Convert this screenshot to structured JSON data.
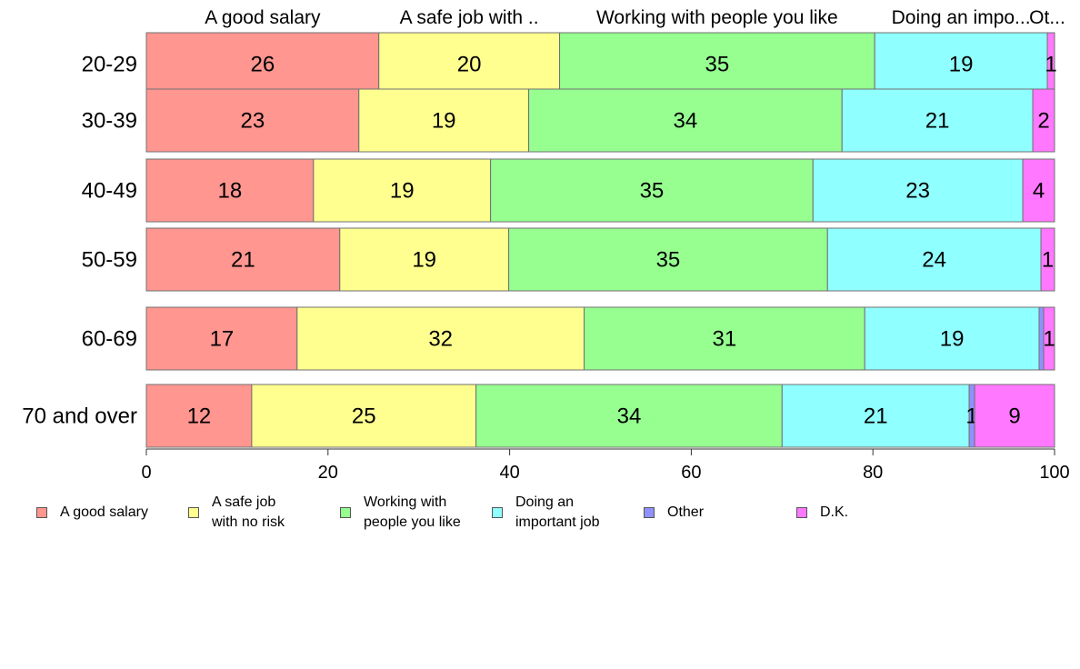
{
  "chart_data": {
    "type": "bar",
    "orientation": "horizontal",
    "stacked": true,
    "categories": [
      "20-29",
      "30-39",
      "40-49",
      "50-59",
      "60-69",
      "70 and over"
    ],
    "series": [
      {
        "name": "A good salary",
        "top_label": "A good salary",
        "legend_label": "A good salary",
        "color": "#FF9690",
        "values": [
          25.6,
          23.4,
          18.4,
          21.3,
          16.6,
          11.6
        ]
      },
      {
        "name": "A safe job with no risk",
        "top_label": "A safe job with ..",
        "legend_label": "A safe job\nwith no risk",
        "color": "#FFFF90",
        "values": [
          19.9,
          18.7,
          19.5,
          18.6,
          31.6,
          24.7
        ]
      },
      {
        "name": "Working with people you like",
        "top_label": "Working with people you like",
        "legend_label": "Working with\npeople you like",
        "color": "#96FF90",
        "values": [
          34.7,
          34.5,
          35.5,
          35.1,
          30.9,
          33.7
        ]
      },
      {
        "name": "Doing an important job",
        "top_label": "Doing an impo...",
        "legend_label": "Doing an\nimportant job",
        "color": "#90FFFF",
        "values": [
          19.0,
          21.0,
          23.1,
          23.5,
          19.2,
          20.6
        ]
      },
      {
        "name": "Other",
        "top_label": "Ot...",
        "legend_label": "Other",
        "color": "#9090FF",
        "values": [
          0,
          0,
          0,
          0,
          0.5,
          0.6
        ]
      },
      {
        "name": "D.K.",
        "top_label": "",
        "legend_label": "D.K.",
        "color": "#FF78FF",
        "values": [
          0.8,
          2.4,
          3.5,
          1.5,
          1.2,
          8.8
        ]
      }
    ],
    "data_labels": [
      [
        "26",
        "20",
        "35",
        "19",
        "",
        "1"
      ],
      [
        "23",
        "19",
        "34",
        "21",
        "",
        "2"
      ],
      [
        "18",
        "19",
        "35",
        "23",
        "",
        "4"
      ],
      [
        "21",
        "19",
        "35",
        "24",
        "",
        "1"
      ],
      [
        "17",
        "32",
        "31",
        "19",
        "",
        "1"
      ],
      [
        "12",
        "25",
        "34",
        "21",
        "1",
        "9"
      ]
    ],
    "xlim": [
      0,
      100
    ],
    "xticks": [
      0,
      20,
      40,
      60,
      80,
      100
    ],
    "title": "",
    "xlabel": "",
    "ylabel": "",
    "grid": false,
    "legend_position": "bottom"
  }
}
